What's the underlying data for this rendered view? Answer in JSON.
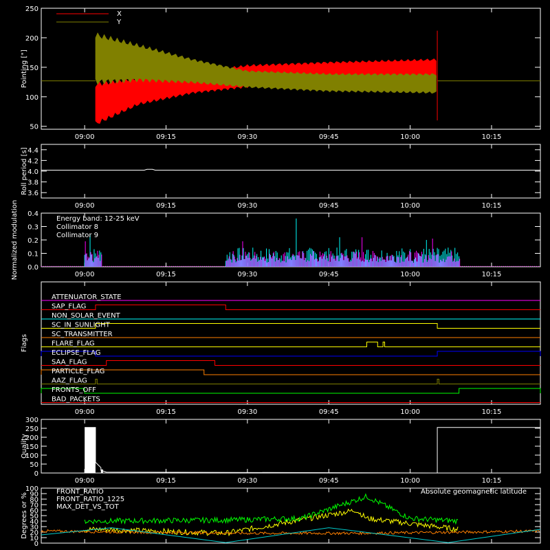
{
  "time_ticks": [
    "09:00",
    "09:15",
    "09:30",
    "09:45",
    "10:00",
    "10:15"
  ],
  "chart_data": [
    {
      "type": "line",
      "ylabel": "Pointing [\"]",
      "ylim": [
        45,
        250
      ],
      "yticks": [
        "50",
        "100",
        "150",
        "200",
        "250"
      ],
      "legend": [
        {
          "name": "X",
          "color": "#ff0000"
        },
        {
          "name": "Y",
          "color": "#808000"
        }
      ],
      "series": [
        {
          "name": "X",
          "color": "#ff0000",
          "envelope": [
            {
              "t": "09:02",
              "low": 50,
              "high": 125
            },
            {
              "t": "09:10",
              "low": 85,
              "high": 135
            },
            {
              "t": "09:20",
              "low": 105,
              "high": 142
            },
            {
              "t": "09:30",
              "low": 115,
              "high": 155
            },
            {
              "t": "09:45",
              "low": 125,
              "high": 160
            },
            {
              "t": "10:05",
              "low": 128,
              "high": 165
            }
          ]
        },
        {
          "name": "Y",
          "color": "#808000",
          "envelope": [
            {
              "t": "09:02",
              "low": 120,
              "high": 210
            },
            {
              "t": "09:10",
              "low": 125,
              "high": 190
            },
            {
              "t": "09:20",
              "low": 122,
              "high": 165
            },
            {
              "t": "09:30",
              "low": 115,
              "high": 145
            },
            {
              "t": "09:45",
              "low": 108,
              "high": 140
            },
            {
              "t": "10:05",
              "low": 105,
              "high": 140
            }
          ]
        }
      ],
      "baseline_value": 127
    },
    {
      "type": "line",
      "ylabel": "Roll period [s]",
      "ylim": [
        3.5,
        4.5
      ],
      "yticks": [
        "3.6",
        "3.8",
        "4.0",
        "4.2",
        "4.4"
      ],
      "series": [
        {
          "name": "",
          "color": "#ffffff",
          "x": [
            "08:52",
            "10:24"
          ],
          "y": [
            4.02,
            4.02
          ]
        }
      ]
    },
    {
      "type": "bar",
      "ylabel": "Normalized modulation",
      "ylim": [
        0,
        0.4
      ],
      "yticks": [
        "0.0",
        "0.1",
        "0.2",
        "0.3",
        "0.4"
      ],
      "annotations": [
        "Energy band: 12-25 keV"
      ],
      "legend": [
        {
          "name": "Collimator 8",
          "color": "#00ffff"
        },
        {
          "name": "Collimator 9",
          "color": "#ff00ff"
        }
      ],
      "series": [
        {
          "name": "Collimator 8",
          "color": "#00ffff",
          "intervals": [
            [
              "09:00",
              "09:03"
            ],
            [
              "09:26",
              "10:09"
            ]
          ],
          "typical": 0.12,
          "peaks": [
            {
              "t": "09:01",
              "v": 0.24
            },
            {
              "t": "09:39",
              "v": 0.36
            },
            {
              "t": "09:47",
              "v": 0.22
            },
            {
              "t": "10:03",
              "v": 0.2
            }
          ]
        },
        {
          "name": "Collimator 9",
          "color": "#ff00ff",
          "intervals": [
            [
              "09:00",
              "09:03"
            ],
            [
              "09:26",
              "10:09"
            ]
          ],
          "typical": 0.1,
          "peaks": [
            {
              "t": "09:00",
              "v": 0.19
            },
            {
              "t": "09:29",
              "v": 0.19
            },
            {
              "t": "09:51",
              "v": 0.22
            },
            {
              "t": "10:04",
              "v": 0.21
            }
          ]
        }
      ]
    },
    {
      "type": "line",
      "ylabel": "Flags",
      "flags": [
        {
          "name": "ATTENUATOR_STATE",
          "color": "#ff00ff",
          "on": []
        },
        {
          "name": "SAP_FLAG",
          "color": "#ff0000",
          "on": [
            [
              "09:02",
              "09:26"
            ]
          ]
        },
        {
          "name": "NON_SOLAR_EVENT",
          "color": "#00ffff",
          "on": []
        },
        {
          "name": "SC_IN_SUNLIGHT",
          "color": "#ffff00",
          "on": [
            [
              "09:02",
              "10:05"
            ]
          ]
        },
        {
          "name": "SC_TRANSMITTER",
          "color": "#ff8000",
          "on": []
        },
        {
          "name": "FLARE_FLAG",
          "color": "#ffff00",
          "on": [
            [
              "09:52",
              "09:54"
            ],
            [
              "09:55",
              "09:55.3"
            ]
          ]
        },
        {
          "name": "ECLIPSE_FLAG",
          "color": "#0000ff",
          "on": [
            [
              "08:52",
              "09:02"
            ],
            [
              "10:05",
              "10:24"
            ]
          ]
        },
        {
          "name": "SAA_FLAG",
          "color": "#ff0000",
          "on": [
            [
              "09:04",
              "09:24"
            ]
          ]
        },
        {
          "name": "PARTICLE_FLAG",
          "color": "#ff8000",
          "on": [
            [
              "08:52",
              "09:22"
            ]
          ]
        },
        {
          "name": "AAZ_FLAG",
          "color": "#808000",
          "on": [
            [
              "09:02",
              "09:02.3"
            ],
            [
              "10:05",
              "10:05.3"
            ]
          ]
        },
        {
          "name": "FRONTS_OFF",
          "color": "#00ff00",
          "on": [
            [
              "08:52",
              "09:00"
            ],
            [
              "10:09",
              "10:24"
            ]
          ]
        },
        {
          "name": "BAD_PACKETS",
          "color": "#ff0000",
          "on": []
        }
      ]
    },
    {
      "type": "line",
      "ylabel": "Quality",
      "ylim": [
        0,
        300
      ],
      "yticks": [
        "0",
        "50",
        "100",
        "150",
        "200",
        "250",
        "300"
      ],
      "series": [
        {
          "name": "",
          "color": "#ffffff",
          "x": [
            "09:00",
            "09:02",
            "09:02",
            "09:03",
            "09:03",
            "09:04",
            "10:05",
            "10:05",
            "10:24"
          ],
          "y": [
            255,
            255,
            60,
            30,
            15,
            5,
            0,
            255,
            255
          ]
        }
      ]
    },
    {
      "type": "line",
      "ylabel": "Degrees or %",
      "ylim": [
        0,
        100
      ],
      "yticks": [
        "0",
        "10",
        "20",
        "30",
        "40",
        "50",
        "60",
        "70",
        "80",
        "90",
        "100"
      ],
      "annotations": [
        "Absolute geomagnetic latitude"
      ],
      "legend": [
        {
          "name": "FRONT_RATIO",
          "color": "#ffff00"
        },
        {
          "name": "FRONT_RATIO_1225",
          "color": "#00ff00"
        },
        {
          "name": "MAX_DET_VS_TOT",
          "color": "#ff8000"
        }
      ],
      "series": [
        {
          "name": "FRONT_RATIO",
          "color": "#ffff00",
          "x": [
            "09:00",
            "09:03",
            "09:26",
            "09:50",
            "09:52",
            "10:09"
          ],
          "y": [
            25,
            25,
            18,
            60,
            45,
            25
          ]
        },
        {
          "name": "FRONT_RATIO_1225",
          "color": "#00ff00",
          "x": [
            "09:00",
            "09:03",
            "09:26",
            "09:40",
            "09:52",
            "10:00",
            "10:09"
          ],
          "y": [
            40,
            40,
            42,
            45,
            85,
            45,
            40
          ]
        },
        {
          "name": "MAX_DET_VS_TOT",
          "color": "#ff8000",
          "x": [
            "08:52",
            "09:10",
            "09:30",
            "09:50",
            "10:10",
            "10:24"
          ],
          "y": [
            22,
            20,
            18,
            18,
            20,
            22
          ]
        },
        {
          "name": "Absolute geomagnetic latitude",
          "color": "#00cccc",
          "x": [
            "08:52",
            "09:05",
            "09:26",
            "09:45",
            "10:07",
            "10:24"
          ],
          "y": [
            15,
            28,
            1,
            28,
            1,
            25
          ]
        }
      ]
    }
  ]
}
